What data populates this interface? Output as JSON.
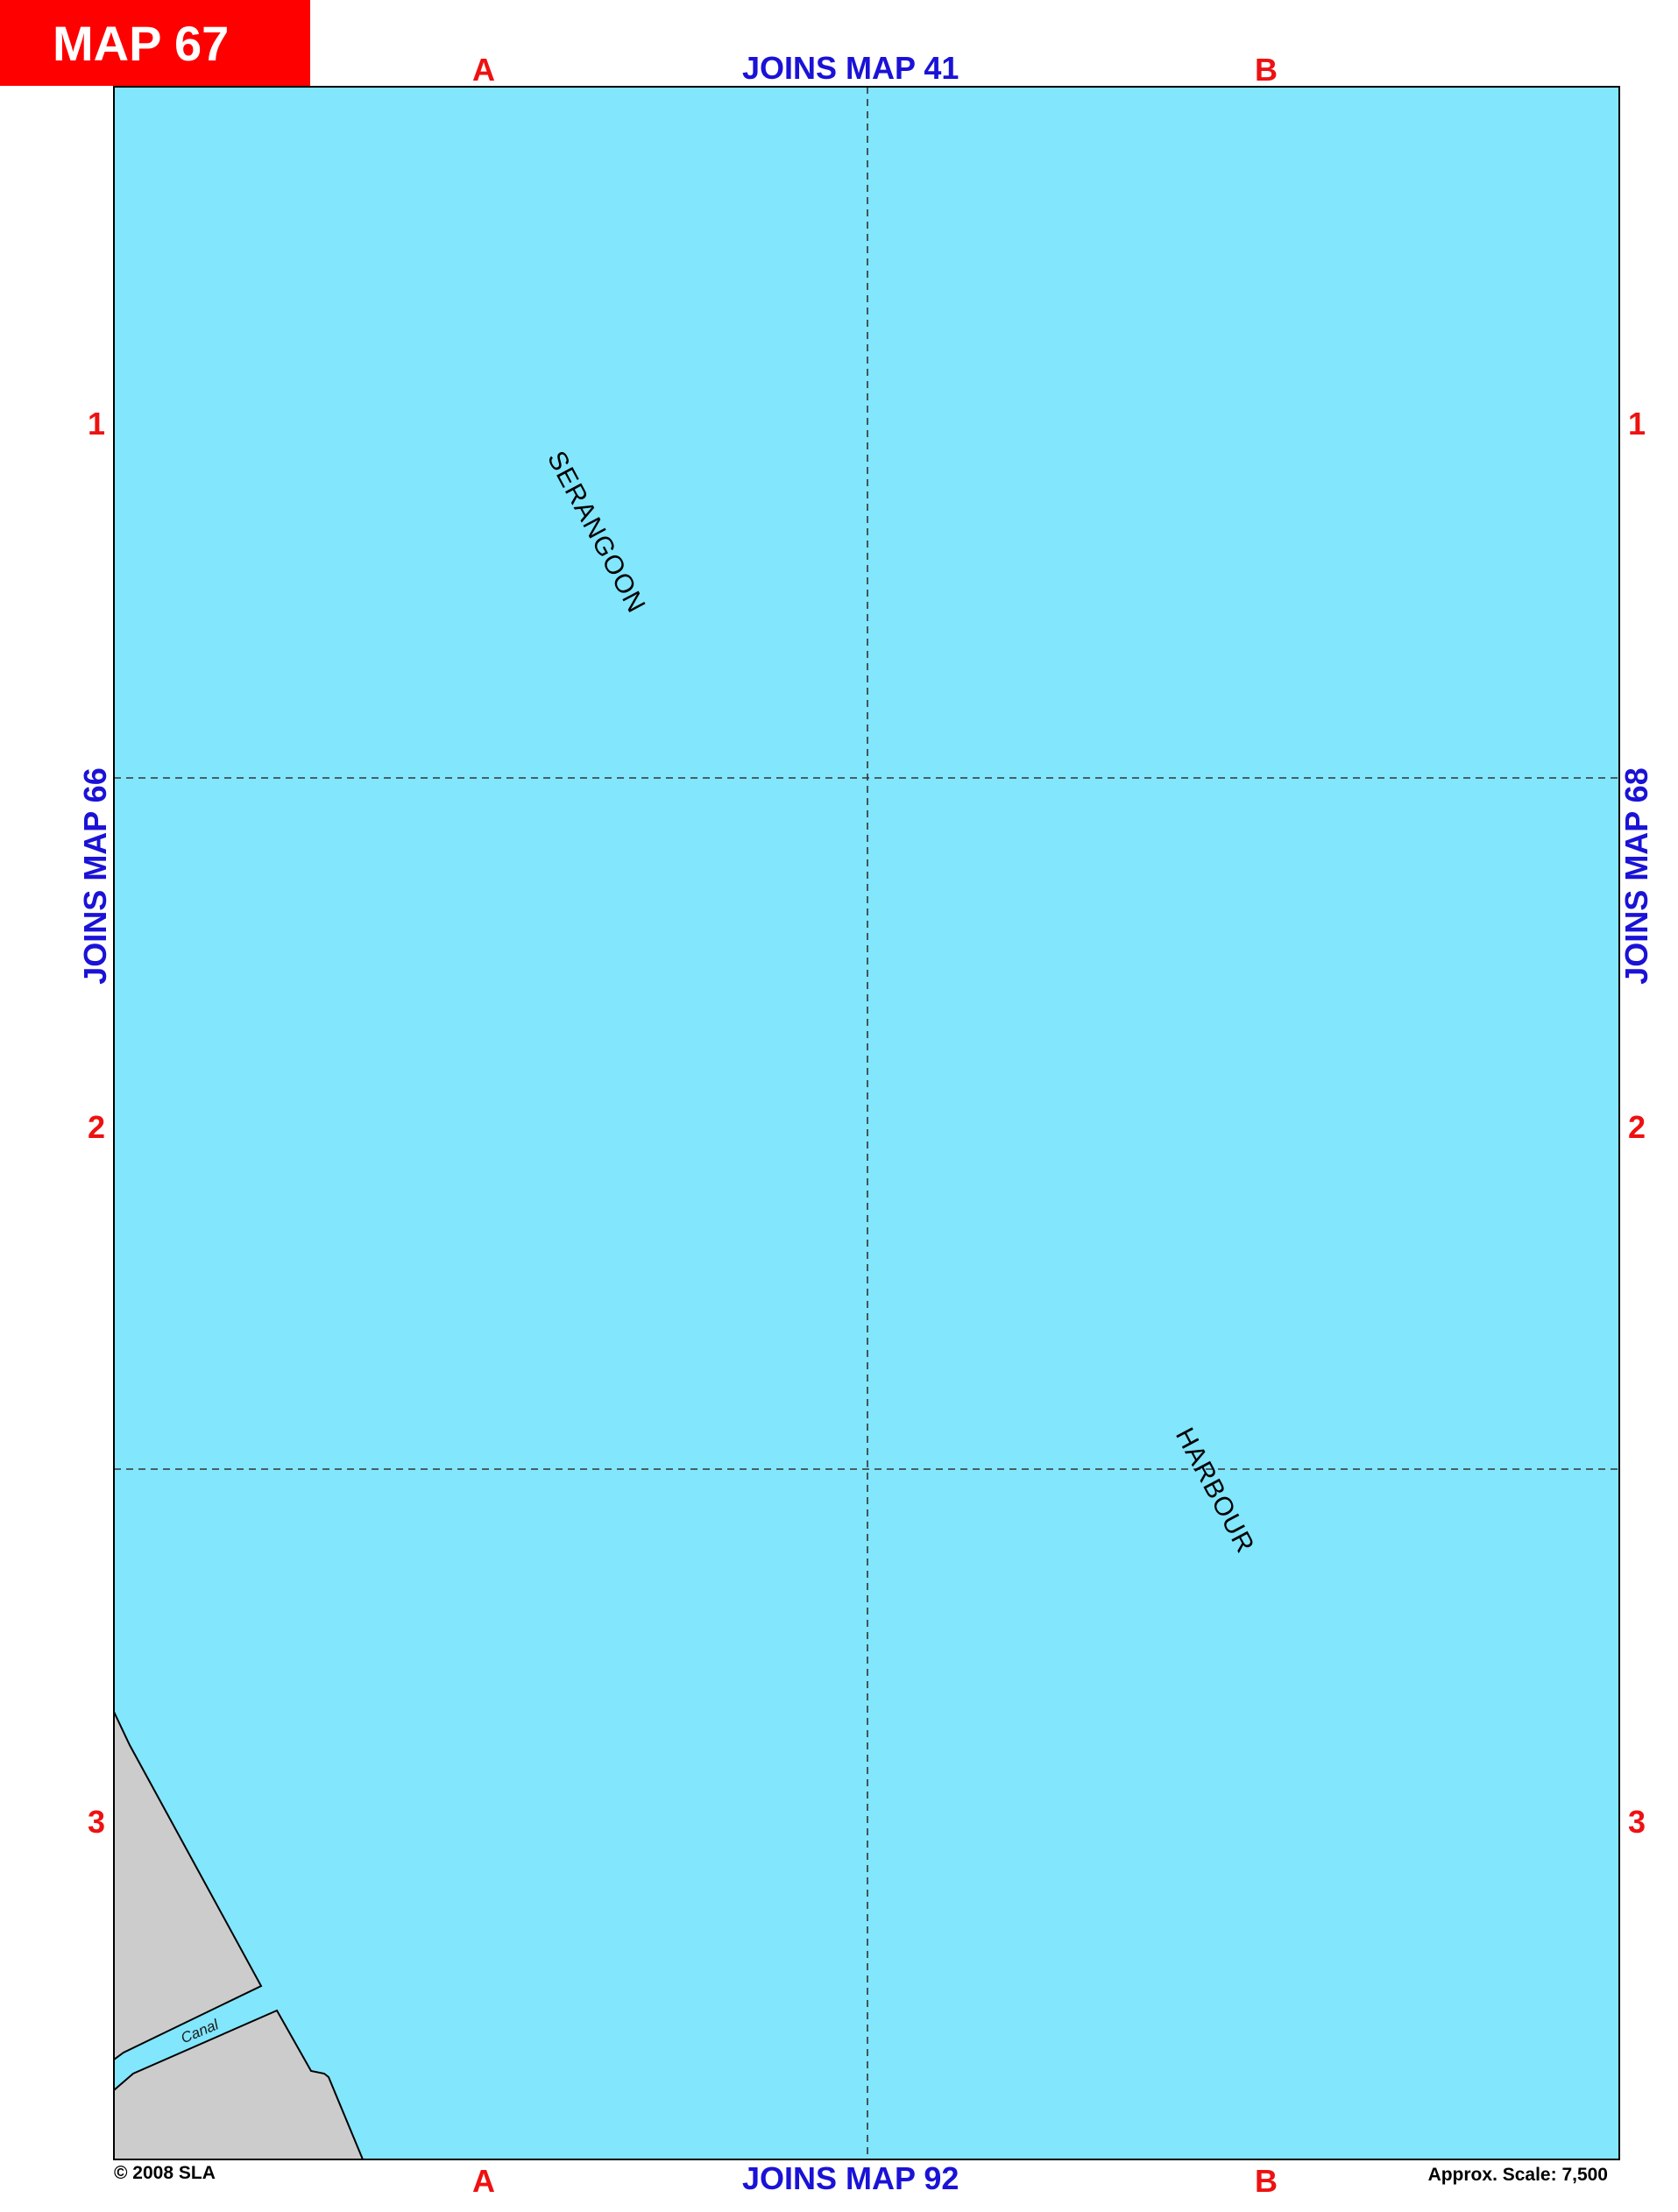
{
  "header": {
    "map_title": "MAP 67"
  },
  "joins": {
    "top": "JOINS MAP  41",
    "bottom": "JOINS MAP 92",
    "left": "JOINS MAP  66",
    "right": "JOINS MAP  68"
  },
  "grid": {
    "columns": [
      "A",
      "B"
    ],
    "rows": [
      "1",
      "2",
      "3"
    ]
  },
  "map": {
    "water_labels": [
      "SERANGOON",
      "HARBOUR"
    ],
    "canal_label": "Canal"
  },
  "footer": {
    "copyright": "© 2008 SLA",
    "scale": "Approx. Scale: 7,500"
  },
  "colors": {
    "water": "#82e6fd",
    "land": "#cccccc",
    "title_tab": "#ff0000",
    "grid_ref": "#ee1111",
    "joins_text": "#1a12d6"
  }
}
